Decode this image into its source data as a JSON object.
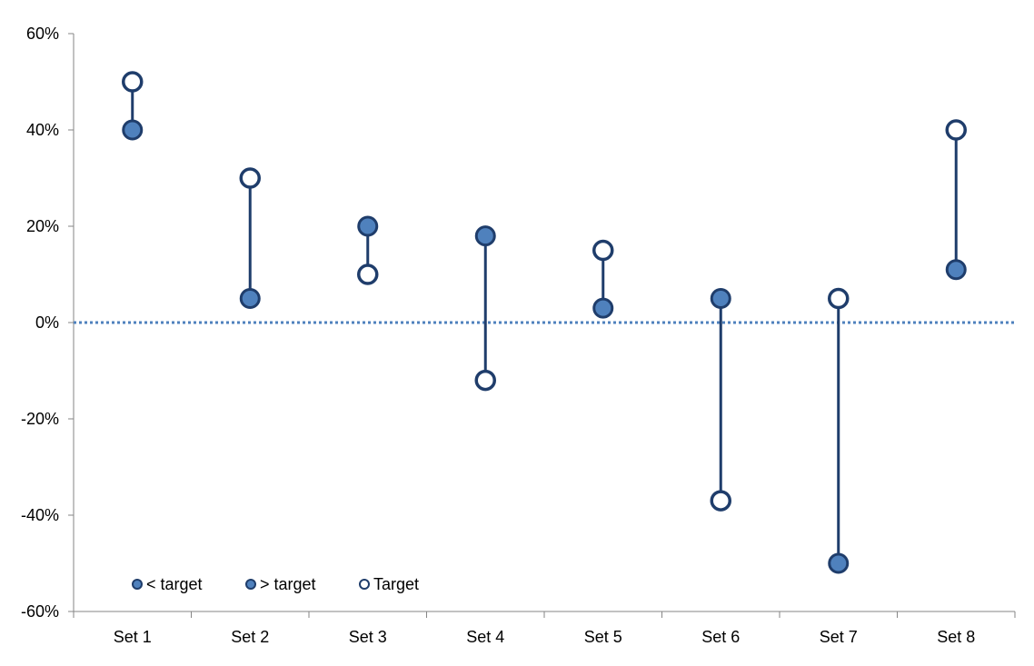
{
  "chart_data": {
    "type": "scatter",
    "title": "",
    "xlabel": "",
    "ylabel": "",
    "categories": [
      "Set 1",
      "Set 2",
      "Set 3",
      "Set 4",
      "Set 5",
      "Set 6",
      "Set 7",
      "Set 8"
    ],
    "ylim": [
      -0.6,
      0.6
    ],
    "yticks": [
      -0.6,
      -0.4,
      -0.2,
      0,
      0.2,
      0.4,
      0.6
    ],
    "ytick_labels": [
      "-60%",
      "-40%",
      "-20%",
      "0%",
      "20%",
      "40%",
      "60%"
    ],
    "actual": [
      0.4,
      0.05,
      0.2,
      0.18,
      0.03,
      0.05,
      -0.5,
      0.11
    ],
    "target": [
      0.5,
      0.3,
      0.1,
      -0.12,
      0.15,
      -0.37,
      0.05,
      0.4
    ],
    "series": [
      {
        "name": "< target",
        "style": "filled"
      },
      {
        "name": "> target",
        "style": "filled"
      },
      {
        "name": "Target",
        "style": "hollow"
      }
    ],
    "reference_line": {
      "value": 0,
      "style": "dotted"
    },
    "legend_position": "bottom-left",
    "grid": false
  },
  "colors": {
    "line": "#1F3D6B",
    "fill": "#4F81BD",
    "hollow_fill": "#FFFFFF",
    "axis": "#868686",
    "zero_line": "#4F81BD"
  }
}
